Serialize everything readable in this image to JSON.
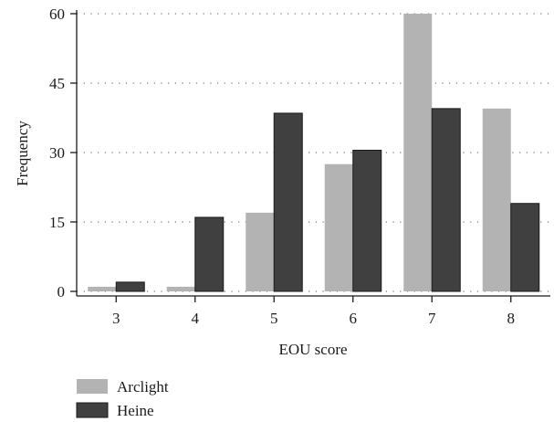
{
  "colors": {
    "arclight": "#b3b3b3",
    "heine": "#404040",
    "axis": "#1a1a1a",
    "grid": "#555555"
  },
  "chart_data": {
    "type": "bar",
    "categories": [
      "3",
      "4",
      "5",
      "6",
      "7",
      "8"
    ],
    "series": [
      {
        "name": "Arclight",
        "values": [
          1,
          1,
          17,
          27.5,
          60,
          39.5
        ]
      },
      {
        "name": "Heine",
        "values": [
          2,
          16,
          38.5,
          30.5,
          39.5,
          19
        ]
      }
    ],
    "title": "",
    "xlabel": "EOU score",
    "ylabel": "Frequency",
    "ylim": [
      0,
      60
    ],
    "yticks": [
      "0",
      "15",
      "30",
      "45",
      "60"
    ],
    "grid": "horizontal dotted",
    "legend_position": "bottom-left"
  }
}
